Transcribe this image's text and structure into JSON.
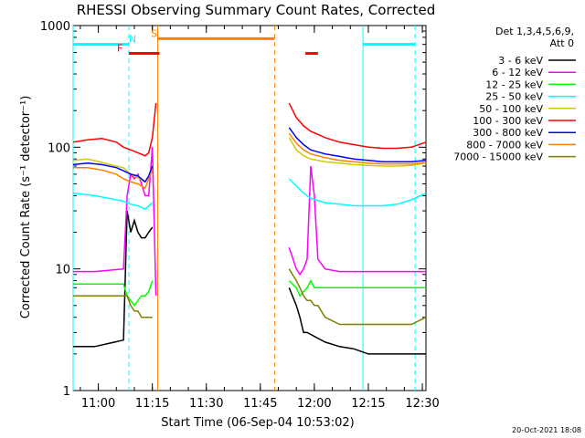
{
  "chart_data": {
    "type": "line",
    "title": "RHESSI Observing Summary Count Rates, Corrected",
    "xlabel": "Start Time (06-Sep-04 10:53:02)",
    "ylabel": "Corrected Count Rate (s⁻¹ detector⁻¹)",
    "x_unit": "minutes after 10:53:02",
    "xlim": [
      0,
      98
    ],
    "ylim": [
      1,
      1000
    ],
    "y_scale": "log",
    "x_ticks": [
      {
        "label": "11:00",
        "x": 7
      },
      {
        "label": "11:15",
        "x": 22
      },
      {
        "label": "11:30",
        "x": 37
      },
      {
        "label": "11:45",
        "x": 52
      },
      {
        "label": "12:00",
        "x": 67
      },
      {
        "label": "12:15",
        "x": 82
      },
      {
        "label": "12:30",
        "x": 97
      }
    ],
    "y_ticks": [
      {
        "label": "1",
        "y": 1
      },
      {
        "label": "10",
        "y": 10
      },
      {
        "label": "100",
        "y": 100
      },
      {
        "label": "1000",
        "y": 1000
      }
    ],
    "grid": false,
    "legend_position": "right",
    "legend_header": [
      "Det 1,3,4,5,6,9,",
      "Att 0"
    ],
    "footer_date": "20-Oct-2021 18:08",
    "series": [
      {
        "name": "3 - 6 keV",
        "color": "#000000",
        "points": [
          [
            0,
            2.3
          ],
          [
            6,
            2.3
          ],
          [
            14,
            2.6
          ],
          [
            15,
            30
          ],
          [
            16,
            20
          ],
          [
            17,
            25
          ],
          [
            18,
            20
          ],
          [
            19,
            18
          ],
          [
            20,
            18
          ],
          [
            21,
            20
          ],
          [
            22,
            22
          ],
          [
            60,
            7
          ],
          [
            62,
            5
          ],
          [
            63,
            4
          ],
          [
            64,
            3
          ],
          [
            65,
            3
          ],
          [
            70,
            2.5
          ],
          [
            74,
            2.3
          ],
          [
            78,
            2.2
          ],
          [
            82,
            2.0
          ],
          [
            86,
            2.0
          ],
          [
            90,
            2.0
          ],
          [
            94,
            2.0
          ],
          [
            98,
            2.0
          ]
        ]
      },
      {
        "name": "6 - 12 keV",
        "color": "#ff00ff",
        "points": [
          [
            0,
            9.5
          ],
          [
            6,
            9.5
          ],
          [
            14,
            10
          ],
          [
            15,
            40
          ],
          [
            16,
            60
          ],
          [
            17,
            55
          ],
          [
            18,
            60
          ],
          [
            19,
            50
          ],
          [
            20,
            40
          ],
          [
            21,
            40
          ],
          [
            22,
            100
          ],
          [
            23,
            6
          ],
          [
            60,
            15
          ],
          [
            62,
            10
          ],
          [
            63,
            9
          ],
          [
            64,
            10
          ],
          [
            65,
            12
          ],
          [
            66,
            70
          ],
          [
            67,
            40
          ],
          [
            68,
            12
          ],
          [
            70,
            10
          ],
          [
            74,
            9.5
          ],
          [
            78,
            9.5
          ],
          [
            82,
            9.5
          ],
          [
            86,
            9.5
          ],
          [
            90,
            9.5
          ],
          [
            94,
            9.5
          ],
          [
            98,
            9.5
          ]
        ]
      },
      {
        "name": "12 - 25 keV",
        "color": "#00ff00",
        "points": [
          [
            0,
            7.5
          ],
          [
            6,
            7.5
          ],
          [
            14,
            7.5
          ],
          [
            15,
            6
          ],
          [
            16,
            5.5
          ],
          [
            17,
            5
          ],
          [
            18,
            5.5
          ],
          [
            19,
            6
          ],
          [
            20,
            6
          ],
          [
            21,
            6.5
          ],
          [
            22,
            8
          ],
          [
            60,
            8
          ],
          [
            62,
            7
          ],
          [
            63,
            6
          ],
          [
            64,
            6.5
          ],
          [
            65,
            7
          ],
          [
            66,
            8
          ],
          [
            67,
            7
          ],
          [
            68,
            7
          ],
          [
            70,
            7
          ],
          [
            74,
            7
          ],
          [
            78,
            7
          ],
          [
            82,
            7
          ],
          [
            86,
            7
          ],
          [
            90,
            7
          ],
          [
            94,
            7
          ],
          [
            98,
            7
          ]
        ]
      },
      {
        "name": "25 - 50 keV",
        "color": "#00ffff",
        "points": [
          [
            0,
            42
          ],
          [
            6,
            40
          ],
          [
            10,
            38
          ],
          [
            14,
            36
          ],
          [
            16,
            34
          ],
          [
            18,
            33
          ],
          [
            20,
            31
          ],
          [
            22,
            35
          ],
          [
            60,
            55
          ],
          [
            62,
            48
          ],
          [
            64,
            42
          ],
          [
            66,
            38
          ],
          [
            70,
            35
          ],
          [
            74,
            34
          ],
          [
            78,
            33
          ],
          [
            82,
            33
          ],
          [
            86,
            33
          ],
          [
            90,
            34
          ],
          [
            94,
            37
          ],
          [
            98,
            42
          ]
        ]
      },
      {
        "name": "50 - 100 keV",
        "color": "#cccc00",
        "points": [
          [
            0,
            78
          ],
          [
            4,
            80
          ],
          [
            8,
            75
          ],
          [
            12,
            70
          ],
          [
            14,
            68
          ],
          [
            16,
            60
          ],
          [
            18,
            56
          ],
          [
            20,
            52
          ],
          [
            21,
            58
          ],
          [
            22,
            70
          ],
          [
            60,
            120
          ],
          [
            62,
            95
          ],
          [
            64,
            85
          ],
          [
            66,
            80
          ],
          [
            70,
            76
          ],
          [
            74,
            74
          ],
          [
            78,
            72
          ],
          [
            82,
            71
          ],
          [
            86,
            70
          ],
          [
            90,
            70
          ],
          [
            94,
            71
          ],
          [
            98,
            74
          ]
        ]
      },
      {
        "name": "100 - 300 keV",
        "color": "#ff0000",
        "points": [
          [
            0,
            110
          ],
          [
            4,
            115
          ],
          [
            8,
            118
          ],
          [
            12,
            110
          ],
          [
            14,
            100
          ],
          [
            16,
            95
          ],
          [
            18,
            90
          ],
          [
            20,
            85
          ],
          [
            21,
            90
          ],
          [
            22,
            120
          ],
          [
            23,
            230
          ],
          [
            60,
            230
          ],
          [
            62,
            175
          ],
          [
            64,
            150
          ],
          [
            66,
            135
          ],
          [
            70,
            120
          ],
          [
            74,
            110
          ],
          [
            78,
            105
          ],
          [
            82,
            100
          ],
          [
            86,
            98
          ],
          [
            90,
            98
          ],
          [
            94,
            100
          ],
          [
            98,
            110
          ]
        ]
      },
      {
        "name": "300 - 800 keV",
        "color": "#0000ff",
        "points": [
          [
            0,
            72
          ],
          [
            4,
            74
          ],
          [
            8,
            72
          ],
          [
            12,
            68
          ],
          [
            14,
            64
          ],
          [
            16,
            60
          ],
          [
            18,
            58
          ],
          [
            20,
            52
          ],
          [
            21,
            58
          ],
          [
            22,
            70
          ],
          [
            60,
            145
          ],
          [
            62,
            120
          ],
          [
            64,
            105
          ],
          [
            66,
            95
          ],
          [
            70,
            88
          ],
          [
            74,
            84
          ],
          [
            78,
            80
          ],
          [
            82,
            78
          ],
          [
            86,
            76
          ],
          [
            90,
            76
          ],
          [
            94,
            76
          ],
          [
            98,
            78
          ]
        ]
      },
      {
        "name": "800 - 7000 keV",
        "color": "#ff8000",
        "points": [
          [
            0,
            68
          ],
          [
            4,
            68
          ],
          [
            8,
            65
          ],
          [
            12,
            60
          ],
          [
            14,
            55
          ],
          [
            16,
            52
          ],
          [
            18,
            50
          ],
          [
            20,
            46
          ],
          [
            21,
            55
          ],
          [
            22,
            65
          ],
          [
            60,
            130
          ],
          [
            62,
            108
          ],
          [
            64,
            95
          ],
          [
            66,
            88
          ],
          [
            70,
            82
          ],
          [
            74,
            78
          ],
          [
            78,
            76
          ],
          [
            82,
            74
          ],
          [
            86,
            73
          ],
          [
            90,
            73
          ],
          [
            94,
            73
          ],
          [
            98,
            75
          ]
        ]
      },
      {
        "name": "7000 - 15000 keV",
        "color": "#808000",
        "points": [
          [
            0,
            6
          ],
          [
            6,
            6
          ],
          [
            14,
            6
          ],
          [
            15,
            6
          ],
          [
            16,
            5
          ],
          [
            17,
            4.5
          ],
          [
            18,
            4.5
          ],
          [
            19,
            4
          ],
          [
            20,
            4
          ],
          [
            21,
            4
          ],
          [
            22,
            4
          ],
          [
            60,
            10
          ],
          [
            62,
            8
          ],
          [
            63,
            7
          ],
          [
            64,
            6
          ],
          [
            65,
            5.5
          ],
          [
            66,
            5.5
          ],
          [
            67,
            5
          ],
          [
            68,
            5
          ],
          [
            70,
            4
          ],
          [
            74,
            3.5
          ],
          [
            78,
            3.5
          ],
          [
            82,
            3.5
          ],
          [
            86,
            3.5
          ],
          [
            90,
            3.5
          ],
          [
            94,
            3.5
          ],
          [
            98,
            4
          ]
        ]
      }
    ],
    "vertical_lines": [
      {
        "x": 0,
        "color": "#00ffff",
        "style": "solid"
      },
      {
        "x": 15.5,
        "color": "#00ffff",
        "style": "dashed"
      },
      {
        "x": 23.5,
        "color": "#ff8000",
        "style": "solid"
      },
      {
        "x": 56,
        "color": "#ff8000",
        "style": "dashed"
      },
      {
        "x": 80.5,
        "color": "#00ffff",
        "style": "solid"
      },
      {
        "x": 95,
        "color": "#00ffff",
        "style": "dashed"
      }
    ],
    "flag_bars": [
      {
        "label": "N",
        "color": "#00ffff",
        "x0": 0,
        "x1": 15.5,
        "y": 700,
        "label_x": 16.5
      },
      {
        "label": "N",
        "color": "#00ffff",
        "x0": 80.5,
        "x1": 95,
        "y": 700,
        "label_x": null
      },
      {
        "label": "S",
        "color": "#ff8000",
        "x0": 23.5,
        "x1": 56,
        "y": 780,
        "label_x": 22.5
      },
      {
        "label": "F",
        "color": "#ff0000",
        "x0": 15.5,
        "x1": 24,
        "y": 590,
        "label_x": 13
      },
      {
        "label": "F",
        "color": "#ff0000",
        "x0": 64.5,
        "x1": 68,
        "y": 590,
        "label_x": null
      }
    ]
  }
}
